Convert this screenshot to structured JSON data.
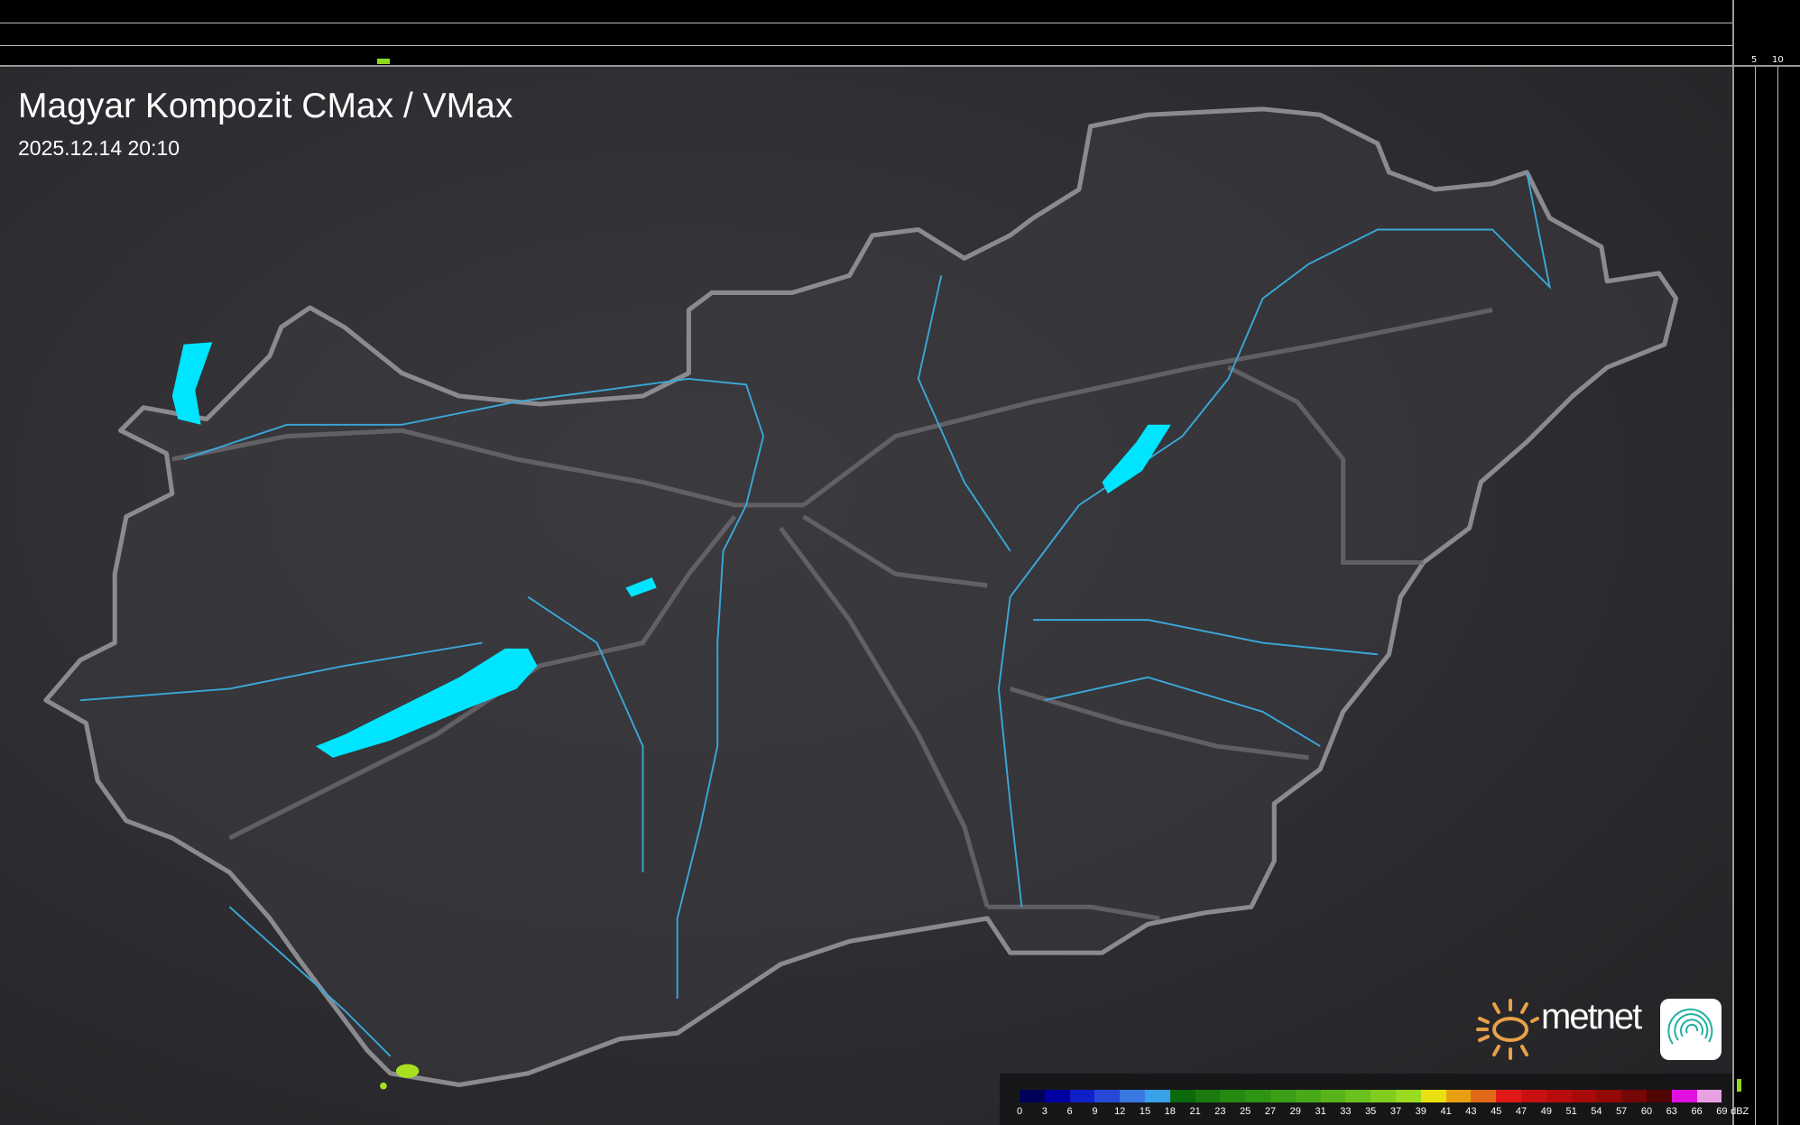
{
  "title": "Magyar Kompozit CMax / VMax",
  "timestamp": "2025.12.14 20:10",
  "top_panel": {
    "ticks": [
      "10",
      "5"
    ]
  },
  "right_panel": {
    "ticks": [
      "5",
      "10"
    ]
  },
  "legend": {
    "unit": "dBZ",
    "labels": [
      "0",
      "3",
      "6",
      "9",
      "12",
      "15",
      "18",
      "21",
      "23",
      "25",
      "27",
      "29",
      "31",
      "33",
      "35",
      "37",
      "39",
      "41",
      "43",
      "45",
      "47",
      "49",
      "51",
      "54",
      "57",
      "60",
      "63",
      "66",
      "69"
    ],
    "colors": [
      "#00005a",
      "#0000a0",
      "#1020c8",
      "#2848d8",
      "#3878e0",
      "#3aa0e8",
      "#0c6a0c",
      "#1a7a0e",
      "#248a12",
      "#2e9414",
      "#3a9e16",
      "#48aa18",
      "#58b41a",
      "#6ac01c",
      "#82cc1e",
      "#9ada20",
      "#e8e010",
      "#e8a010",
      "#e06818",
      "#e01818",
      "#c81010",
      "#b80c0c",
      "#a80a0a",
      "#940808",
      "#780606",
      "#500404",
      "#e010e0",
      "#e8a0e0",
      "#90e0e8"
    ]
  },
  "brand": {
    "name": "metnet",
    "sun_color": "#e8a048",
    "icon_color": "#20b0a0"
  },
  "colors": {
    "lakes": "#00e5ff",
    "rivers": "#3aa8d8",
    "border": "#8a8a90",
    "roads": "#6a6a70",
    "precip": "#a8e020"
  }
}
